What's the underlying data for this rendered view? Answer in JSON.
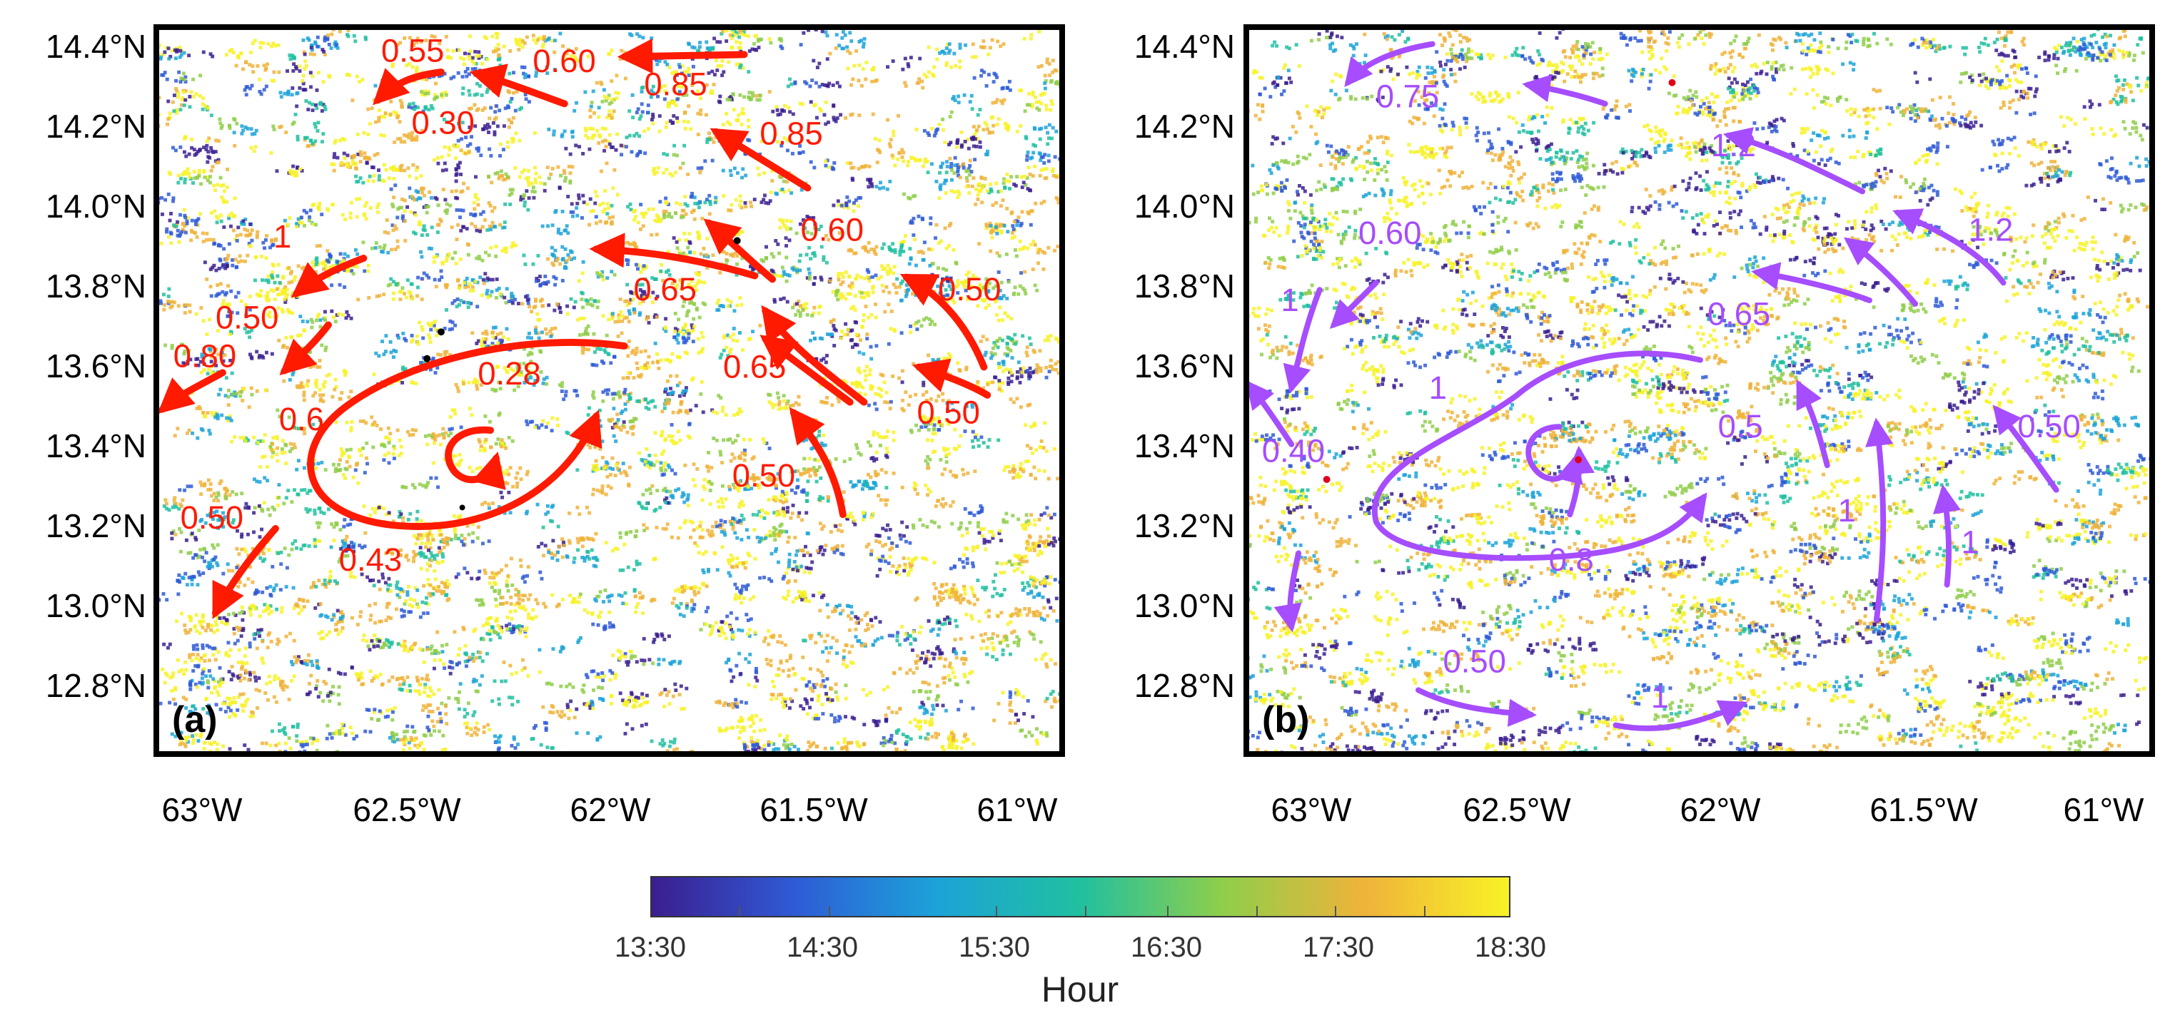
{
  "colors": {
    "panel_a_arrows": "#ff1a00",
    "panel_b_arrows": "#a64dff",
    "colormap": [
      "#3b1e8f",
      "#2f5bd6",
      "#1ca3d8",
      "#20c0a0",
      "#8fce4a",
      "#f0b33a",
      "#f7f226"
    ]
  },
  "lat_labels": [
    "14.4°N",
    "14.2°N",
    "14.0°N",
    "13.8°N",
    "13.6°N",
    "13.4°N",
    "13.2°N",
    "13.0°N",
    "12.8°N"
  ],
  "lon_labels": [
    "63°W",
    "62.5°W",
    "62°W",
    "61.5°W",
    "61°W"
  ],
  "panel_a": {
    "label": "(a)",
    "speed_labels": [
      "0.55",
      "0.60",
      "0.85",
      "0.30",
      "0.85",
      "1",
      "0.60",
      "0.65",
      "0.50",
      "0.50",
      "0.80",
      "0.28",
      "0.65",
      "0.6",
      "0.50",
      "0.50",
      "0.50",
      "0.43"
    ]
  },
  "panel_b": {
    "label": "(b)",
    "speed_labels": [
      "0.75",
      "1.2",
      "0.60",
      "1.2",
      "1",
      "0.65",
      "1",
      "0.50",
      "0.40",
      "0.5",
      "1",
      "1",
      "0.8",
      "0.50",
      "1"
    ]
  },
  "colorbar": {
    "title": "Hour",
    "ticks": [
      "13:30",
      "14:30",
      "15:30",
      "16:30",
      "17:30",
      "18:30"
    ]
  }
}
